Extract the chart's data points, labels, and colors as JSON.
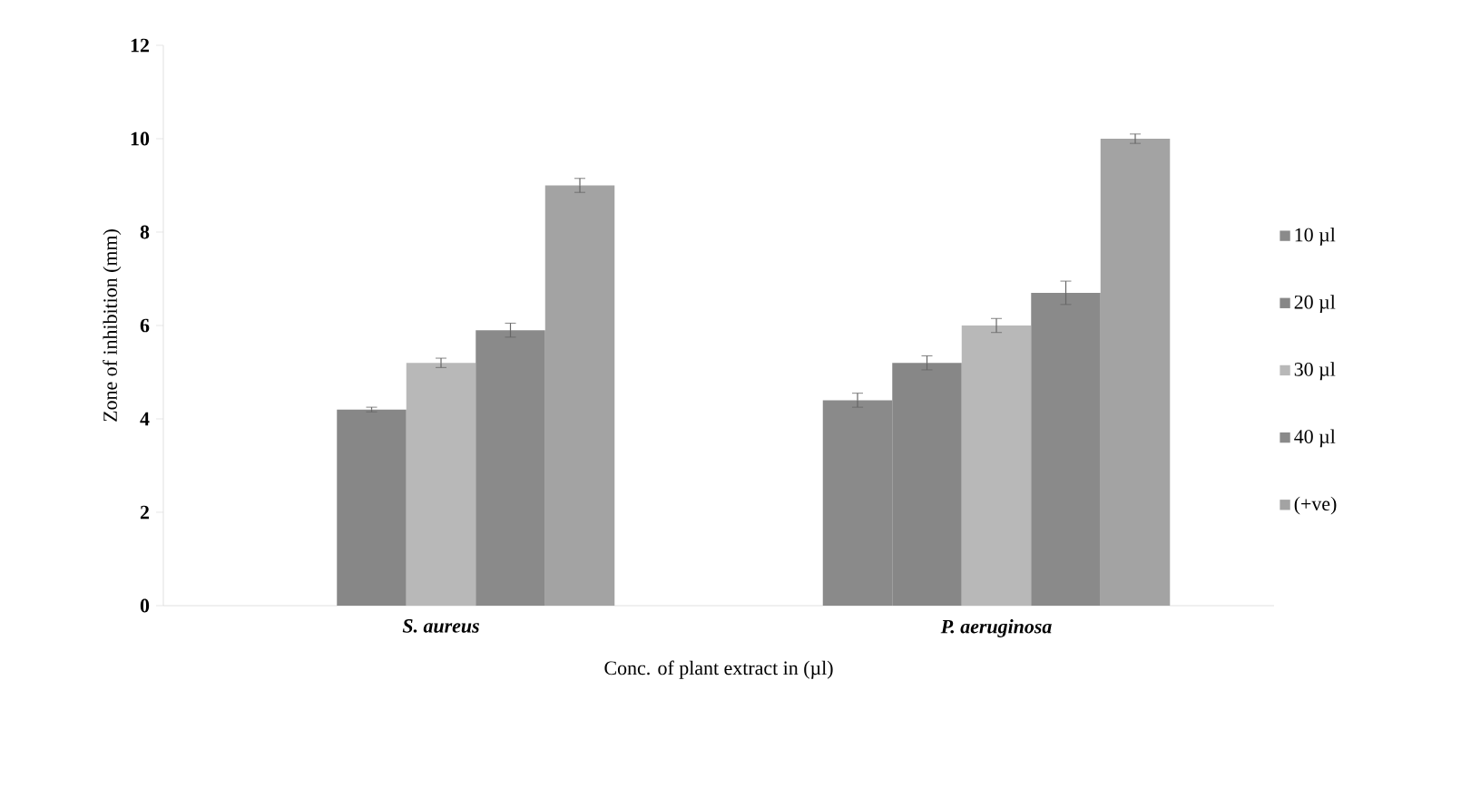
{
  "chart_data": {
    "type": "bar",
    "xlabel": "Conc. of plant extract in (µl)",
    "ylabel": "Zone of inhibition (mm)",
    "categories": [
      "S. aureus",
      "P. aeruginosa"
    ],
    "series": [
      {
        "name": "10 µl",
        "color": "#8a8a8a",
        "values": [
          null,
          4.4
        ],
        "errors": [
          null,
          0.15
        ]
      },
      {
        "name": "20 µl",
        "color": "#878787",
        "values": [
          4.2,
          5.2
        ],
        "errors": [
          0.05,
          0.15
        ]
      },
      {
        "name": "30 µl",
        "color": "#b8b8b8",
        "values": [
          5.2,
          6.0
        ],
        "errors": [
          0.1,
          0.15
        ]
      },
      {
        "name": "40 µl",
        "color": "#8a8a8a",
        "values": [
          5.9,
          6.7
        ],
        "errors": [
          0.15,
          0.25
        ]
      },
      {
        "name": "(+ve)",
        "color": "#a3a3a3",
        "values": [
          9.0,
          10.0
        ],
        "errors": [
          0.15,
          0.1
        ]
      }
    ],
    "ylim": [
      0,
      12
    ],
    "yticks": [
      0,
      2,
      4,
      6,
      8,
      10,
      12
    ],
    "legend": "right",
    "grid": false
  }
}
